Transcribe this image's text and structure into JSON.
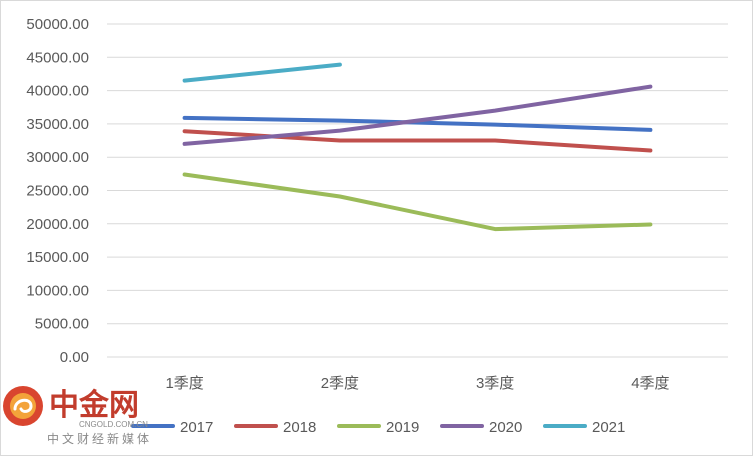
{
  "chart_data": {
    "type": "line",
    "categories": [
      "1季度",
      "2季度",
      "3季度",
      "4季度"
    ],
    "y_ticks": [
      "0.00",
      "5000.00",
      "10000.00",
      "15000.00",
      "20000.00",
      "25000.00",
      "30000.00",
      "35000.00",
      "40000.00",
      "45000.00",
      "50000.00"
    ],
    "ylim": [
      0,
      50000
    ],
    "grid": true,
    "legend_position": "bottom",
    "series": [
      {
        "name": "2017",
        "color": "#4472c4",
        "values": [
          35900,
          35500,
          34900,
          34100
        ]
      },
      {
        "name": "2018",
        "color": "#c0504d",
        "values": [
          33900,
          32500,
          32500,
          31000
        ]
      },
      {
        "name": "2019",
        "color": "#9bbb59",
        "values": [
          27400,
          24100,
          19200,
          19900
        ]
      },
      {
        "name": "2020",
        "color": "#8064a2",
        "values": [
          32000,
          34000,
          37000,
          40600
        ]
      },
      {
        "name": "2021",
        "color": "#4bacc6",
        "values": [
          41500,
          43900,
          null,
          null
        ]
      }
    ]
  },
  "watermark": {
    "logo_text": "中金网",
    "domain_text": "CNGOLD.COM.CN",
    "tagline": "中文财经新媒体",
    "color": "#c23c2c"
  }
}
